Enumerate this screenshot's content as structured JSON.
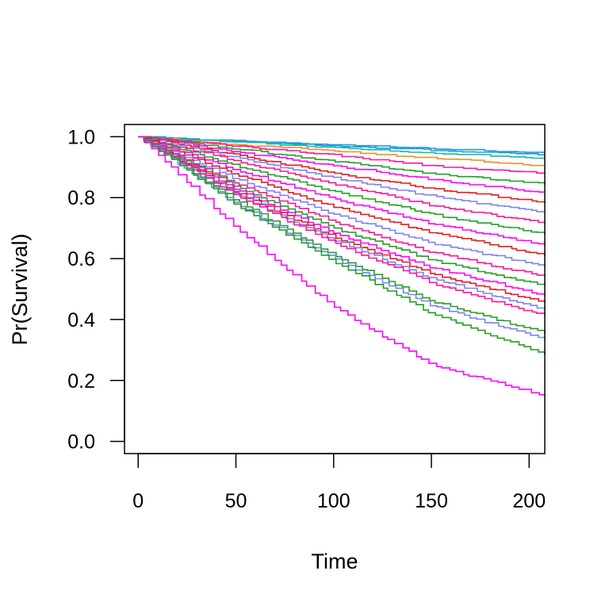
{
  "chart_data": {
    "type": "line",
    "step": true,
    "title": "",
    "xlabel": "Time",
    "ylabel": "Pr(Survival)",
    "xlim": [
      -7,
      208
    ],
    "ylim": [
      -0.04,
      1.04
    ],
    "xticks": [
      0,
      50,
      100,
      150,
      200
    ],
    "xtick_labels": [
      "0",
      "50",
      "100",
      "150",
      "200"
    ],
    "yticks": [
      0.0,
      0.2,
      0.4,
      0.6,
      0.8,
      1.0
    ],
    "ytick_labels": [
      "0.0",
      "0.2",
      "0.4",
      "0.6",
      "0.8",
      "1.0"
    ],
    "grid": false,
    "legend": "none",
    "palette": [
      "#1E9BDC",
      "#E41A1C",
      "#FF1493",
      "#FF00FF",
      "#21A021",
      "#7B83F5",
      "#F28E2B",
      "#1CB8A8"
    ],
    "series": [
      {
        "color": "#1E9BDC",
        "x": [
          0,
          50,
          100,
          150,
          208
        ],
        "y": [
          1.0,
          0.987,
          0.975,
          0.962,
          0.948
        ]
      },
      {
        "color": "#1E9BDC",
        "x": [
          0,
          50,
          100,
          150,
          208
        ],
        "y": [
          1.0,
          0.985,
          0.971,
          0.957,
          0.942
        ]
      },
      {
        "color": "#1CB8A8",
        "x": [
          0,
          50,
          100,
          150,
          208
        ],
        "y": [
          1.0,
          0.982,
          0.965,
          0.948,
          0.93
        ]
      },
      {
        "color": "#F28E2B",
        "x": [
          0,
          50,
          100,
          150,
          208
        ],
        "y": [
          1.0,
          0.975,
          0.955,
          0.93,
          0.905
        ]
      },
      {
        "color": "#FF1493",
        "x": [
          0,
          50,
          100,
          150,
          208
        ],
        "y": [
          1.0,
          0.97,
          0.94,
          0.905,
          0.88
        ]
      },
      {
        "color": "#21A021",
        "x": [
          0,
          50,
          100,
          150,
          208
        ],
        "y": [
          1.0,
          0.96,
          0.92,
          0.88,
          0.845
        ]
      },
      {
        "color": "#FF00FF",
        "x": [
          0,
          50,
          100,
          150,
          208
        ],
        "y": [
          1.0,
          0.95,
          0.905,
          0.86,
          0.815
        ]
      },
      {
        "color": "#E41A1C",
        "x": [
          0,
          50,
          100,
          150,
          208
        ],
        "y": [
          1.0,
          0.94,
          0.88,
          0.83,
          0.785
        ]
      },
      {
        "color": "#7B83F5",
        "x": [
          0,
          50,
          100,
          150,
          208
        ],
        "y": [
          1.0,
          0.93,
          0.865,
          0.805,
          0.75
        ]
      },
      {
        "color": "#FF1493",
        "x": [
          0,
          50,
          100,
          150,
          208
        ],
        "y": [
          1.0,
          0.92,
          0.845,
          0.775,
          0.715
        ]
      },
      {
        "color": "#21A021",
        "x": [
          0,
          50,
          100,
          150,
          208
        ],
        "y": [
          1.0,
          0.905,
          0.82,
          0.745,
          0.68
        ]
      },
      {
        "color": "#FF00FF",
        "x": [
          0,
          50,
          100,
          150,
          208
        ],
        "y": [
          1.0,
          0.89,
          0.795,
          0.715,
          0.645
        ]
      },
      {
        "color": "#E41A1C",
        "x": [
          0,
          50,
          100,
          150,
          208
        ],
        "y": [
          1.0,
          0.875,
          0.77,
          0.685,
          0.61
        ]
      },
      {
        "color": "#7B83F5",
        "x": [
          0,
          50,
          100,
          150,
          208
        ],
        "y": [
          1.0,
          0.86,
          0.745,
          0.65,
          0.575
        ]
      },
      {
        "color": "#FF1493",
        "x": [
          0,
          50,
          100,
          150,
          208
        ],
        "y": [
          1.0,
          0.845,
          0.72,
          0.62,
          0.54
        ]
      },
      {
        "color": "#21A021",
        "x": [
          0,
          50,
          100,
          150,
          208
        ],
        "y": [
          1.0,
          0.835,
          0.7,
          0.595,
          0.51
        ]
      },
      {
        "color": "#FF00FF",
        "x": [
          0,
          50,
          100,
          150,
          208
        ],
        "y": [
          1.0,
          0.825,
          0.685,
          0.57,
          0.48
        ]
      },
      {
        "color": "#E41A1C",
        "x": [
          0,
          50,
          100,
          150,
          208
        ],
        "y": [
          1.0,
          0.815,
          0.67,
          0.55,
          0.455
        ]
      },
      {
        "color": "#7B83F5",
        "x": [
          0,
          50,
          100,
          150,
          208
        ],
        "y": [
          1.0,
          0.81,
          0.66,
          0.535,
          0.43
        ]
      },
      {
        "color": "#FF1493",
        "x": [
          0,
          50,
          100,
          150,
          208
        ],
        "y": [
          1.0,
          0.805,
          0.65,
          0.52,
          0.41
        ]
      },
      {
        "color": "#21A021",
        "x": [
          0,
          50,
          100,
          150,
          208
        ],
        "y": [
          1.0,
          0.79,
          0.61,
          0.46,
          0.355
        ]
      },
      {
        "color": "#7B83F5",
        "x": [
          0,
          50,
          100,
          150,
          208
        ],
        "y": [
          1.0,
          0.78,
          0.6,
          0.445,
          0.335
        ]
      },
      {
        "color": "#21A021",
        "x": [
          0,
          50,
          100,
          150,
          208
        ],
        "y": [
          1.0,
          0.775,
          0.59,
          0.42,
          0.285
        ]
      },
      {
        "color": "#FF00FF",
        "x": [
          0,
          50,
          100,
          150,
          208
        ],
        "y": [
          1.0,
          0.7,
          0.44,
          0.25,
          0.15
        ]
      }
    ]
  }
}
